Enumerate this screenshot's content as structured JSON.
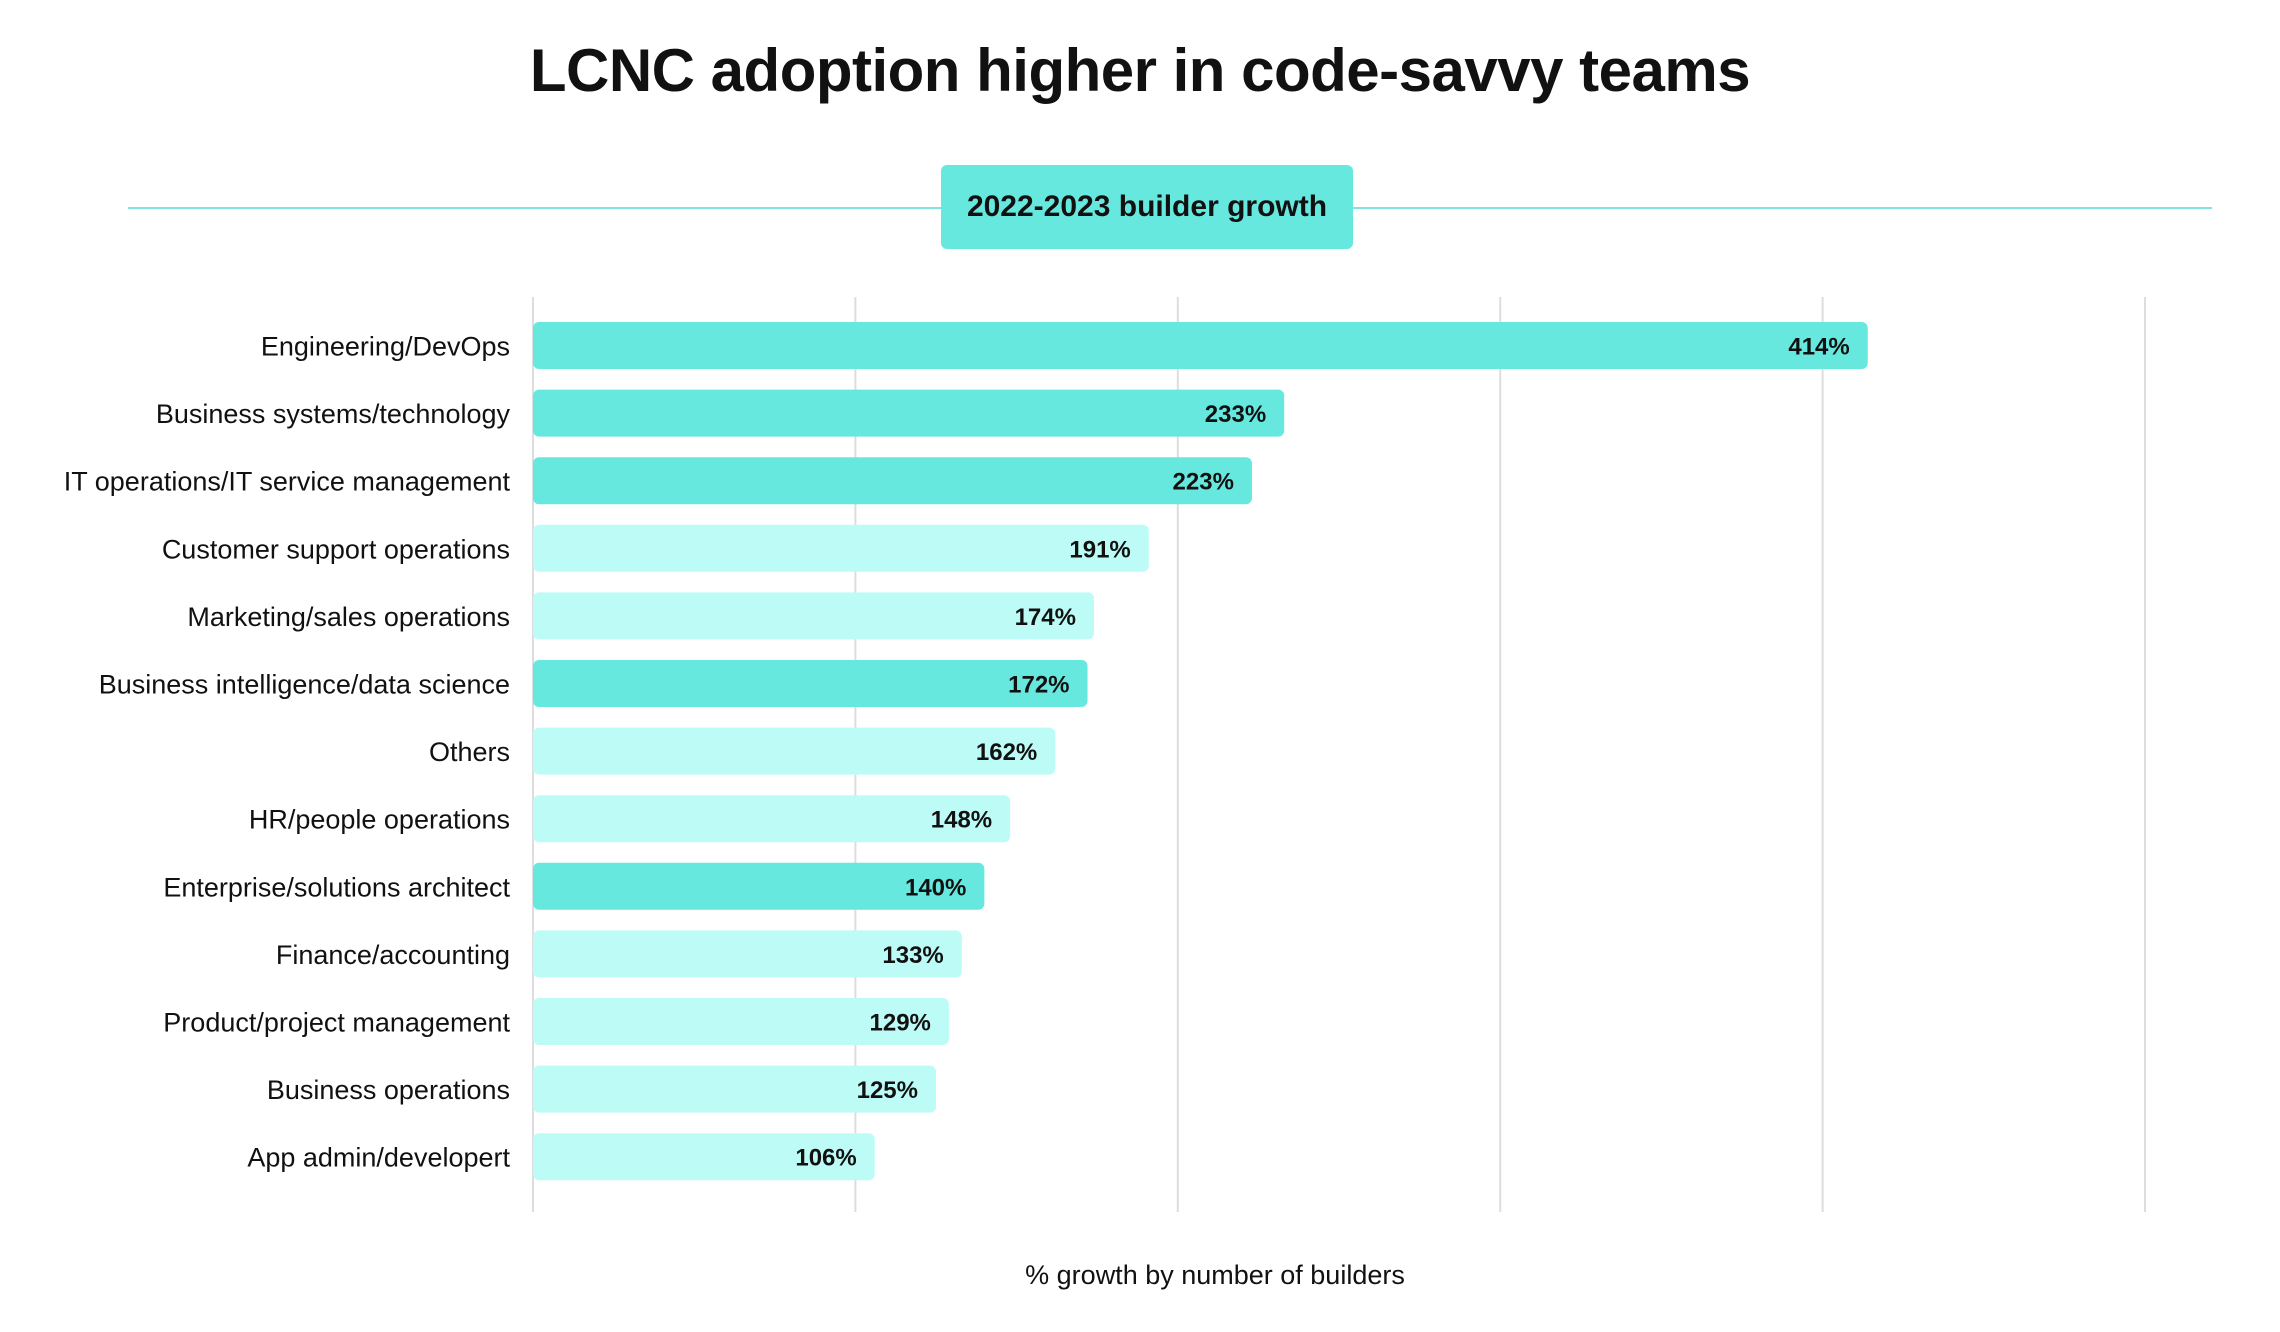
{
  "chart_data": {
    "type": "bar",
    "orientation": "horizontal",
    "title": "LCNC adoption higher in code-savvy teams",
    "subtitle": "2022-2023 builder growth",
    "xlabel": "% growth by number of builders",
    "ylabel": "",
    "xlim": [
      0,
      500
    ],
    "grid": true,
    "value_suffix": "%",
    "categories": [
      "Engineering/DevOps",
      "Business systems/technology",
      "IT operations/IT service management",
      "Customer support operations",
      "Marketing/sales operations",
      "Business intelligence/data science",
      "Others",
      "HR/people operations",
      "Enterprise/solutions architect",
      "Finance/accounting",
      "Product/project management",
      "Business operations",
      "App admin/developert"
    ],
    "values": [
      414,
      233,
      223,
      191,
      174,
      172,
      162,
      148,
      140,
      133,
      129,
      125,
      106
    ],
    "highlighted": [
      true,
      true,
      true,
      false,
      false,
      true,
      false,
      false,
      true,
      false,
      false,
      false,
      false
    ],
    "colors": {
      "highlight": "#66e8de",
      "normal": "#bdfcf6",
      "grid": "#dddddd",
      "text": "#111111"
    }
  }
}
